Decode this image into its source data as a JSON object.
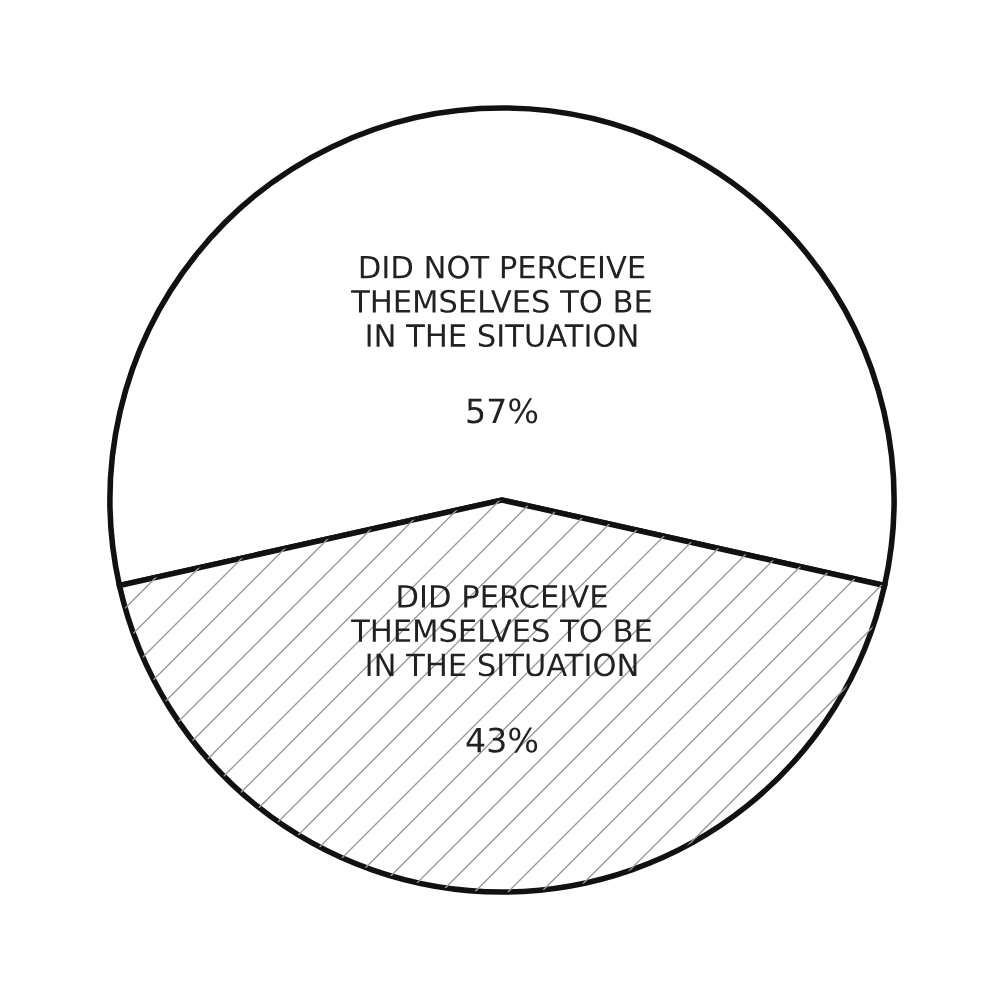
{
  "chart_data": {
    "type": "pie",
    "categories": [
      "DID NOT PERCEIVE\nTHEMSELVES TO BE\nIN THE SITUATION",
      "DID PERCEIVE\nTHEMSELVES TO BE\nIN THE SITUATION"
    ],
    "values": [
      57,
      43
    ],
    "value_labels": [
      "57%",
      "43%"
    ],
    "colors": [
      "#ffffff",
      "#ffffff"
    ]
  }
}
